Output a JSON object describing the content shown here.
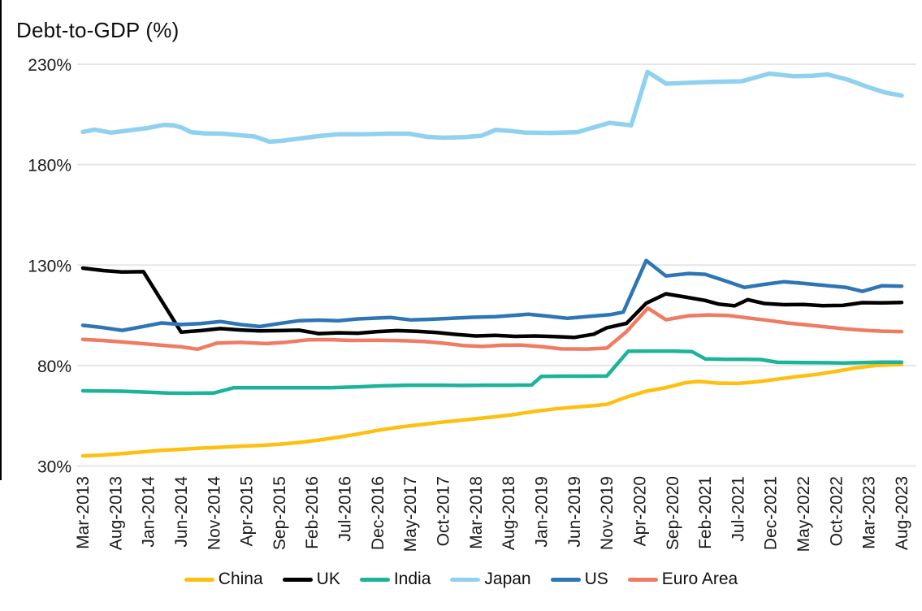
{
  "chart_data": {
    "type": "line",
    "title": "Debt-to-GDP (%)",
    "legend_position": "bottom",
    "grid": "horizontal-only",
    "y_axis": {
      "min": 30,
      "max": 230,
      "tick_values": [
        230,
        180,
        130,
        80,
        30
      ],
      "tick_labels": [
        "230%",
        "180%",
        "130%",
        "80%",
        "30%"
      ]
    },
    "x_axis": {
      "unit": "tick_index",
      "tick_labels": [
        "Mar-2013",
        "Aug-2013",
        "Jan-2014",
        "Jun-2014",
        "Nov-2014",
        "Apr-2015",
        "Sep-2015",
        "Feb-2016",
        "Jul-2016",
        "Dec-2016",
        "May-2017",
        "Oct-2017",
        "Mar-2018",
        "Aug-2018",
        "Jan-2019",
        "Jun-2019",
        "Nov-2019",
        "Apr-2020",
        "Sep-2020",
        "Feb-2021",
        "Jul-2021",
        "Dec-2021",
        "May-2022",
        "Oct-2022",
        "Mar-2023",
        "Aug-2023"
      ]
    },
    "series": [
      {
        "name": "China",
        "color": "#FDC010",
        "stroke_width": 4.5,
        "points": [
          [
            0,
            35
          ],
          [
            0.6,
            35.4
          ],
          [
            1.2,
            36.2
          ],
          [
            1.8,
            37
          ],
          [
            2.4,
            37.8
          ],
          [
            3,
            38.3
          ],
          [
            3.6,
            38.9
          ],
          [
            4.2,
            39.3
          ],
          [
            4.8,
            39.8
          ],
          [
            5.4,
            40.2
          ],
          [
            6,
            40.8
          ],
          [
            6.6,
            41.7
          ],
          [
            7.2,
            42.9
          ],
          [
            7.8,
            44.3
          ],
          [
            8.4,
            45.9
          ],
          [
            9,
            47.7
          ],
          [
            9.6,
            49.2
          ],
          [
            10.2,
            50.4
          ],
          [
            10.8,
            51.5
          ],
          [
            11.4,
            52.5
          ],
          [
            12,
            53.5
          ],
          [
            12.6,
            54.5
          ],
          [
            13.2,
            55.7
          ],
          [
            13.8,
            57.2
          ],
          [
            14.4,
            58.4
          ],
          [
            15,
            59.3
          ],
          [
            15.6,
            60
          ],
          [
            16,
            60.7
          ],
          [
            16.6,
            64.3
          ],
          [
            17.2,
            67.2
          ],
          [
            17.8,
            69
          ],
          [
            18.4,
            71.4
          ],
          [
            18.8,
            72.1
          ],
          [
            19.4,
            71.2
          ],
          [
            20,
            71.1
          ],
          [
            20.6,
            71.9
          ],
          [
            21.2,
            73.2
          ],
          [
            21.8,
            74.5
          ],
          [
            22.4,
            75.6
          ],
          [
            23,
            77.1
          ],
          [
            23.6,
            78.8
          ],
          [
            24.2,
            80
          ],
          [
            24.7,
            80.4
          ],
          [
            25,
            80.5
          ]
        ]
      },
      {
        "name": "UK",
        "color": "#000000",
        "stroke_width": 4.5,
        "points": [
          [
            0,
            128.5
          ],
          [
            0.6,
            127.3
          ],
          [
            1.2,
            126.6
          ],
          [
            1.85,
            126.7
          ],
          [
            3,
            96.6
          ],
          [
            3.6,
            97.4
          ],
          [
            4.2,
            98.4
          ],
          [
            4.8,
            97.7
          ],
          [
            5.4,
            97.2
          ],
          [
            6,
            97.4
          ],
          [
            6.6,
            97.6
          ],
          [
            7.2,
            95.9
          ],
          [
            7.8,
            96.3
          ],
          [
            8.4,
            96.1
          ],
          [
            9,
            96.9
          ],
          [
            9.6,
            97.4
          ],
          [
            10.2,
            97
          ],
          [
            10.8,
            96.4
          ],
          [
            11.4,
            95.5
          ],
          [
            12,
            94.7
          ],
          [
            12.6,
            95
          ],
          [
            13.2,
            94.5
          ],
          [
            13.8,
            94.7
          ],
          [
            14.4,
            94.4
          ],
          [
            15,
            94
          ],
          [
            15.6,
            95.6
          ],
          [
            16,
            98.8
          ],
          [
            16.6,
            101
          ],
          [
            17.2,
            111
          ],
          [
            17.8,
            115.7
          ],
          [
            18.4,
            114.1
          ],
          [
            19,
            112.4
          ],
          [
            19.4,
            110.6
          ],
          [
            19.9,
            109.7
          ],
          [
            20.3,
            112.8
          ],
          [
            20.8,
            110.9
          ],
          [
            21.4,
            110.3
          ],
          [
            22,
            110.4
          ],
          [
            22.6,
            109.8
          ],
          [
            23.2,
            109.9
          ],
          [
            23.8,
            111.3
          ],
          [
            24.4,
            111.2
          ],
          [
            25,
            111.4
          ]
        ]
      },
      {
        "name": "India",
        "color": "#1CB498",
        "stroke_width": 4.5,
        "points": [
          [
            0,
            67.4
          ],
          [
            0.6,
            67.3
          ],
          [
            1.2,
            67.2
          ],
          [
            2,
            66.7
          ],
          [
            2.6,
            66.3
          ],
          [
            3.2,
            66.2
          ],
          [
            4,
            66.3
          ],
          [
            4.6,
            68.9
          ],
          [
            5.2,
            68.9
          ],
          [
            6,
            68.9
          ],
          [
            6.8,
            68.9
          ],
          [
            7.6,
            69
          ],
          [
            8.4,
            69.4
          ],
          [
            9.2,
            69.9
          ],
          [
            10,
            70.2
          ],
          [
            10.8,
            70.2
          ],
          [
            11.6,
            70.1
          ],
          [
            12.4,
            70.2
          ],
          [
            13.1,
            70.2
          ],
          [
            13.7,
            70.3
          ],
          [
            14,
            74.6
          ],
          [
            14.6,
            74.7
          ],
          [
            15.4,
            74.7
          ],
          [
            16,
            74.8
          ],
          [
            16.65,
            87.1
          ],
          [
            17.4,
            87.2
          ],
          [
            18,
            87.2
          ],
          [
            18.6,
            86.9
          ],
          [
            19,
            83.3
          ],
          [
            19.6,
            83.1
          ],
          [
            20.2,
            83.1
          ],
          [
            20.7,
            83
          ],
          [
            21.2,
            81.6
          ],
          [
            22,
            81.5
          ],
          [
            22.6,
            81.4
          ],
          [
            23.2,
            81.3
          ],
          [
            23.8,
            81.5
          ],
          [
            24.4,
            81.7
          ],
          [
            25,
            81.7
          ]
        ]
      },
      {
        "name": "Japan",
        "color": "#90D1F0",
        "stroke_width": 5.5,
        "points": [
          [
            0,
            196.3
          ],
          [
            0.37,
            197.4
          ],
          [
            0.86,
            195.9
          ],
          [
            1.44,
            197.1
          ],
          [
            1.93,
            198.1
          ],
          [
            2.47,
            199.8
          ],
          [
            2.76,
            199.6
          ],
          [
            3.01,
            198.5
          ],
          [
            3.3,
            196.2
          ],
          [
            3.75,
            195.5
          ],
          [
            4.25,
            195.4
          ],
          [
            4.74,
            194.7
          ],
          [
            5.24,
            194
          ],
          [
            5.7,
            191.4
          ],
          [
            6.07,
            191.8
          ],
          [
            6.47,
            192.7
          ],
          [
            7.31,
            194.4
          ],
          [
            7.81,
            195.1
          ],
          [
            8.55,
            195.1
          ],
          [
            9.37,
            195.4
          ],
          [
            9.95,
            195.4
          ],
          [
            10.53,
            193.8
          ],
          [
            11.03,
            193.4
          ],
          [
            11.68,
            193.7
          ],
          [
            12.17,
            194.4
          ],
          [
            12.6,
            197.3
          ],
          [
            13.09,
            196.7
          ],
          [
            13.51,
            195.9
          ],
          [
            14.3,
            195.8
          ],
          [
            15.1,
            196.2
          ],
          [
            16.08,
            200.8
          ],
          [
            16.74,
            199.6
          ],
          [
            17.24,
            226.2
          ],
          [
            17.81,
            220.3
          ],
          [
            19.05,
            221.1
          ],
          [
            20.12,
            221.5
          ],
          [
            20.96,
            225.3
          ],
          [
            21.71,
            224
          ],
          [
            22.28,
            224.2
          ],
          [
            22.73,
            224.9
          ],
          [
            23.35,
            222.3
          ],
          [
            23.94,
            218.8
          ],
          [
            24.51,
            215.8
          ],
          [
            25,
            214.4
          ]
        ]
      },
      {
        "name": "US",
        "color": "#2E75B6",
        "stroke_width": 4.5,
        "points": [
          [
            0,
            100
          ],
          [
            0.6,
            98.9
          ],
          [
            1.2,
            97.5
          ],
          [
            1.8,
            99.3
          ],
          [
            2.4,
            101.2
          ],
          [
            3,
            100.4
          ],
          [
            3.6,
            100.9
          ],
          [
            4.2,
            101.9
          ],
          [
            4.8,
            100.4
          ],
          [
            5.4,
            99.4
          ],
          [
            6,
            100.9
          ],
          [
            6.6,
            102.3
          ],
          [
            7.2,
            102.6
          ],
          [
            7.8,
            102.3
          ],
          [
            8.4,
            103.2
          ],
          [
            9.4,
            103.9
          ],
          [
            10,
            102.7
          ],
          [
            10.6,
            103
          ],
          [
            11.9,
            104
          ],
          [
            12.6,
            104.3
          ],
          [
            13.6,
            105.5
          ],
          [
            14.2,
            104.6
          ],
          [
            14.8,
            103.5
          ],
          [
            15.5,
            104.5
          ],
          [
            16.1,
            105.3
          ],
          [
            16.5,
            106.6
          ],
          [
            17.2,
            132.3
          ],
          [
            17.8,
            124.6
          ],
          [
            18.5,
            125.8
          ],
          [
            19,
            125.4
          ],
          [
            19.6,
            122.2
          ],
          [
            20.2,
            118.9
          ],
          [
            20.8,
            120.4
          ],
          [
            21.4,
            121.7
          ],
          [
            22,
            120.9
          ],
          [
            22.5,
            120.1
          ],
          [
            23.3,
            118.9
          ],
          [
            23.8,
            116.9
          ],
          [
            24.4,
            119.7
          ],
          [
            25,
            119.5
          ]
        ]
      },
      {
        "name": "Euro Area",
        "color": "#EF7B62",
        "stroke_width": 4.5,
        "points": [
          [
            0,
            93
          ],
          [
            0.6,
            92.5
          ],
          [
            1.2,
            91.7
          ],
          [
            1.8,
            90.9
          ],
          [
            2.4,
            90.1
          ],
          [
            3,
            89.3
          ],
          [
            3.5,
            88.1
          ],
          [
            4.1,
            91.2
          ],
          [
            4.8,
            91.5
          ],
          [
            5.6,
            90.9
          ],
          [
            6.2,
            91.6
          ],
          [
            6.9,
            92.8
          ],
          [
            7.5,
            92.9
          ],
          [
            8.2,
            92.5
          ],
          [
            9,
            92.6
          ],
          [
            9.7,
            92.4
          ],
          [
            10.4,
            92
          ],
          [
            11,
            91.1
          ],
          [
            11.6,
            90
          ],
          [
            12.2,
            89.5
          ],
          [
            12.8,
            90.1
          ],
          [
            13.4,
            90.2
          ],
          [
            14,
            89.4
          ],
          [
            14.6,
            88.3
          ],
          [
            15.4,
            88.2
          ],
          [
            16,
            88.7
          ],
          [
            16.6,
            96.9
          ],
          [
            17.25,
            108.6
          ],
          [
            17.8,
            102.8
          ],
          [
            18.5,
            104.8
          ],
          [
            19.1,
            105.2
          ],
          [
            19.7,
            104.9
          ],
          [
            20.3,
            103.7
          ],
          [
            20.9,
            102.5
          ],
          [
            21.5,
            101.2
          ],
          [
            22.1,
            100.2
          ],
          [
            22.7,
            99.2
          ],
          [
            23.3,
            98.2
          ],
          [
            23.9,
            97.5
          ],
          [
            24.4,
            97.1
          ],
          [
            25,
            96.9
          ]
        ]
      }
    ]
  }
}
